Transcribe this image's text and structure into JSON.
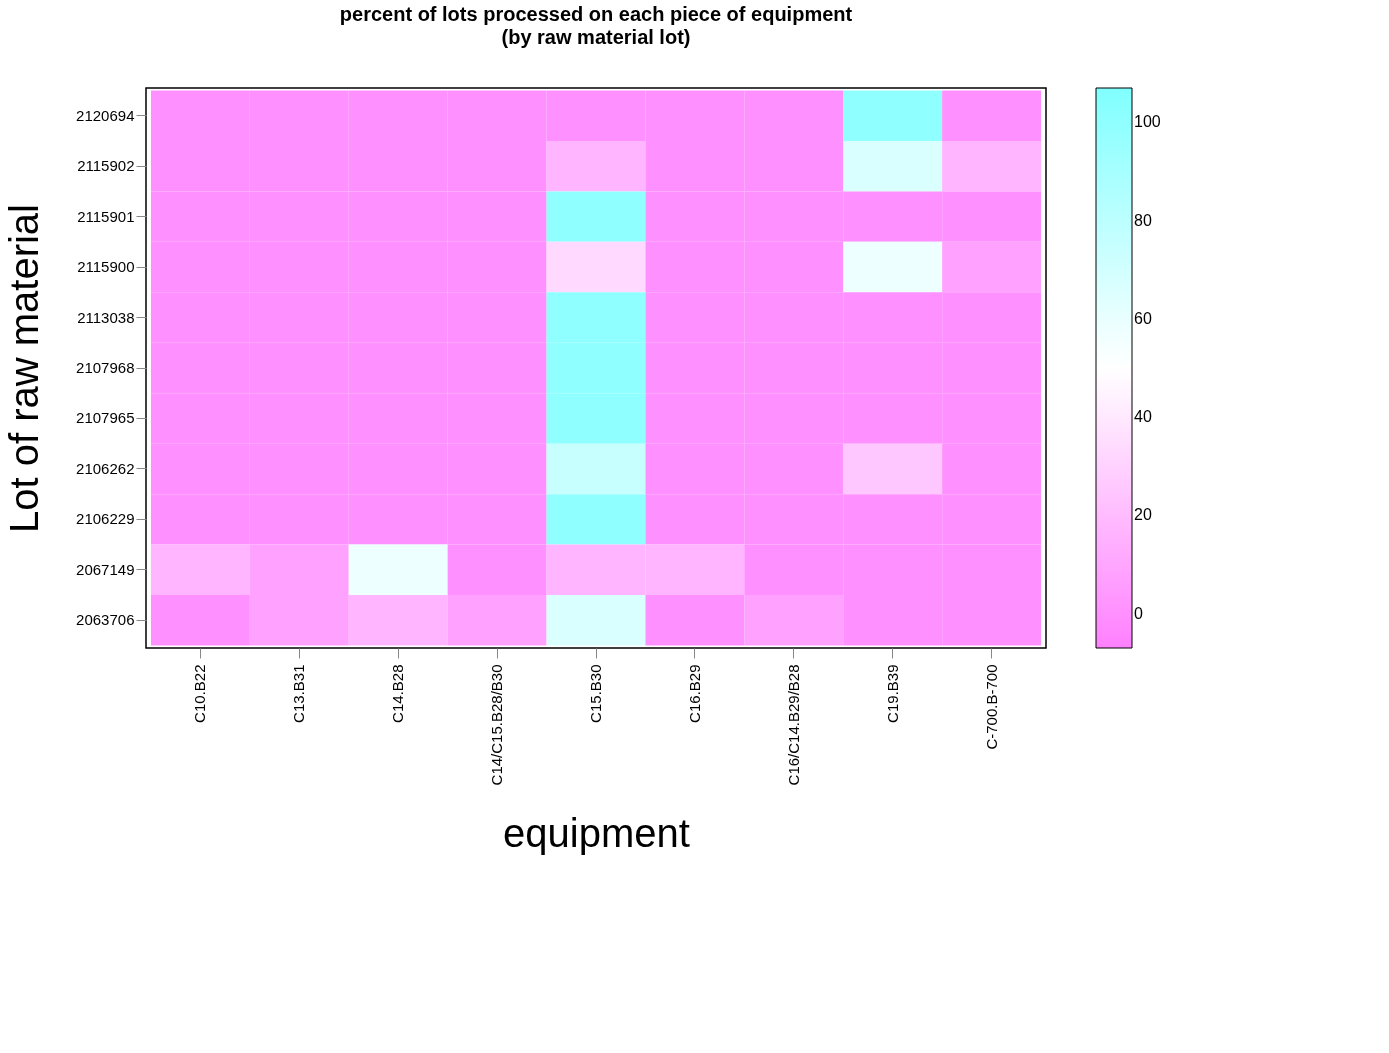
{
  "chart_data": {
    "type": "heatmap",
    "title": "percent of lots processed on each piece of equipment",
    "subtitle": "(by raw material lot)",
    "xlabel": "equipment",
    "ylabel": "Lot of raw material",
    "categories": [
      "C10.B22",
      "C13.B31",
      "C14.B28",
      "C14/C15.B28/B30",
      "C15.B30",
      "C16.B29",
      "C16/C14.B29/B28",
      "C19.B39",
      "C-700.B-700"
    ],
    "y_categories": [
      "2120694",
      "2115902",
      "2115901",
      "2115900",
      "2113038",
      "2107968",
      "2107965",
      "2106262",
      "2106229",
      "2067149",
      "2063706"
    ],
    "cells": [
      [
        0,
        0,
        0,
        0,
        0,
        0,
        0,
        100,
        0
      ],
      [
        0,
        0,
        0,
        0,
        17,
        0,
        0,
        67,
        17
      ],
      [
        0,
        0,
        0,
        0,
        100,
        0,
        0,
        0,
        0
      ],
      [
        0,
        0,
        0,
        0,
        33,
        0,
        0,
        58,
        8
      ],
      [
        0,
        0,
        0,
        0,
        100,
        0,
        0,
        0,
        0
      ],
      [
        0,
        0,
        0,
        0,
        100,
        0,
        0,
        0,
        0
      ],
      [
        0,
        0,
        0,
        0,
        100,
        0,
        0,
        0,
        0
      ],
      [
        0,
        0,
        0,
        0,
        75,
        0,
        0,
        25,
        0
      ],
      [
        0,
        0,
        0,
        0,
        100,
        0,
        0,
        0,
        0
      ],
      [
        17,
        8,
        58,
        0,
        17,
        17,
        0,
        0,
        0
      ],
      [
        0,
        8,
        17,
        8,
        67,
        0,
        8,
        0,
        0
      ]
    ],
    "colors": [
      "#ff80ff",
      "#ffffff",
      "#80ffff"
    ],
    "clim": [
      -7,
      107
    ],
    "cticks": [
      0,
      20,
      40,
      60,
      80,
      100
    ],
    "grid": false
  }
}
